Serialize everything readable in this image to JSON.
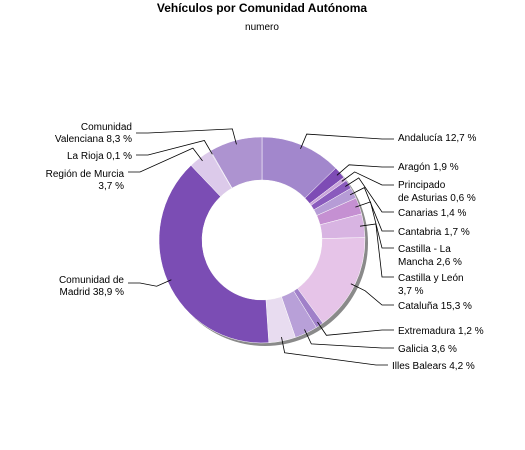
{
  "chart_data": {
    "type": "pie",
    "variant": "donut",
    "title": "Vehículos por Comunidad Autónoma",
    "subtitle": "numero",
    "slices": [
      {
        "name": "Andalucía",
        "value": 12.7,
        "label": "Andalucía 12,7 %",
        "color": "#a287cc"
      },
      {
        "name": "Aragón",
        "value": 1.9,
        "label": "Aragón 1,9 %",
        "color": "#7e4cb5"
      },
      {
        "name": "Principado de Asturias",
        "value": 0.6,
        "label": "Principado de Asturias 0,6 %",
        "color": "#c9a4da"
      },
      {
        "name": "Canarias",
        "value": 1.4,
        "label": "Canarias 1,4 %",
        "color": "#8a5bbd"
      },
      {
        "name": "Cantabria",
        "value": 1.7,
        "label": "Cantabria 1,7 %",
        "color": "#b69cd6"
      },
      {
        "name": "Castilla - La Mancha",
        "value": 2.6,
        "label": "Castilla - La Mancha 2,6 %",
        "color": "#c590d2"
      },
      {
        "name": "Castilla y León",
        "value": 3.7,
        "label": "Castilla y León 3,7 %",
        "color": "#d8b4e2"
      },
      {
        "name": "Cataluña",
        "value": 15.3,
        "label": "Cataluña 15,3 %",
        "color": "#e6c4e8"
      },
      {
        "name": "Extremadura",
        "value": 1.2,
        "label": "Extremadura 1,2 %",
        "color": "#a080c9"
      },
      {
        "name": "Galicia",
        "value": 3.6,
        "label": "Galicia 3,6 %",
        "color": "#b8a0d8"
      },
      {
        "name": "Illes Balears",
        "value": 4.2,
        "label": "Illes Balears 4,2 %",
        "color": "#e8dcf0"
      },
      {
        "name": "Comunidad de Madrid",
        "value": 38.9,
        "label": "Comunidad de Madrid 38,9 %",
        "color": "#7b4db4"
      },
      {
        "name": "Región de Murcia",
        "value": 3.7,
        "label": "Región de Murcia 3,7 %",
        "color": "#dccaea"
      },
      {
        "name": "La Rioja",
        "value": 0.1,
        "label": "La Rioja 0,1 %",
        "color": "#8d66c0"
      },
      {
        "name": "Comunidad Valenciana",
        "value": 8.3,
        "label": "Comunidad Valenciana 8,3 %",
        "color": "#ad93d0"
      }
    ]
  }
}
